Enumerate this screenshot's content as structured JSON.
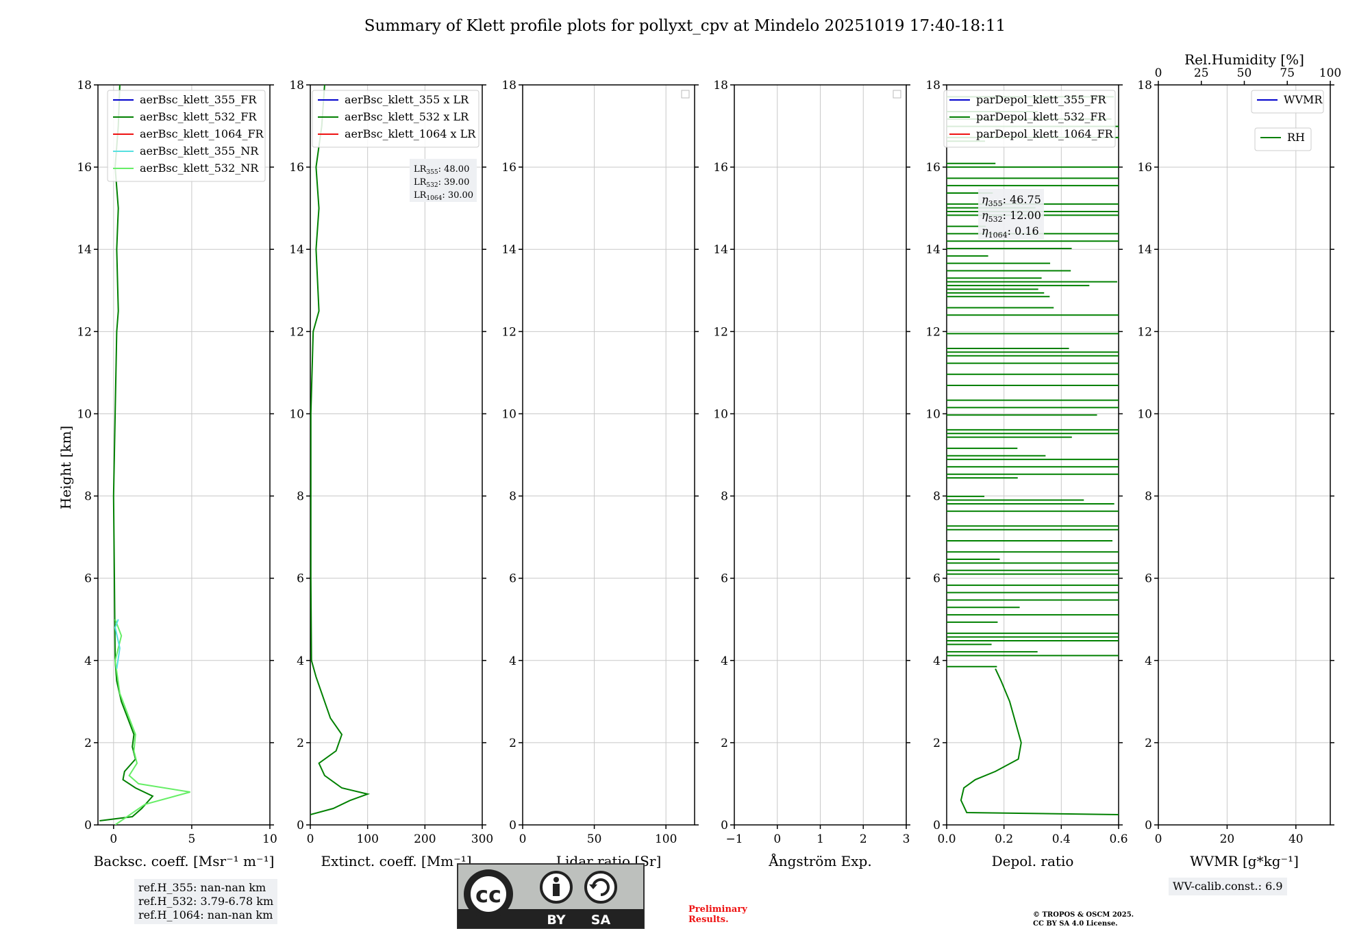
{
  "title": "Summary of Klett profile plots for pollyxt_cpv at Mindelo 20251019 17:40-18:11",
  "ylabel": "Height [km]",
  "y_ticks": [
    "0",
    "2",
    "4",
    "6",
    "8",
    "10",
    "12",
    "14",
    "16",
    "18"
  ],
  "panels": [
    {
      "xlabel": "Backsc. coeff. [Msr⁻¹ m⁻¹]",
      "xticks": [
        "0",
        "5",
        "10"
      ]
    },
    {
      "xlabel": "Extinct. coeff. [Mm⁻¹]",
      "xticks": [
        "0",
        "100",
        "200",
        "300"
      ]
    },
    {
      "xlabel": "Lidar ratio [Sr]",
      "xticks": [
        "0",
        "50",
        "100"
      ]
    },
    {
      "xlabel": "Ångström Exp.",
      "xticks": [
        "−1",
        "0",
        "1",
        "2",
        "3"
      ]
    },
    {
      "xlabel": "Depol. ratio",
      "xticks": [
        "0.0",
        "0.2",
        "0.4",
        "0.6"
      ]
    },
    {
      "xlabel": "WVMR [g*kg⁻¹]",
      "xticks": [
        "0",
        "20",
        "40"
      ],
      "top_label": "Rel.Humidity [%]",
      "top_ticks": [
        "0",
        "25",
        "50",
        "75",
        "100"
      ]
    }
  ],
  "legends": {
    "bsc": [
      "aerBsc_klett_355_FR",
      "aerBsc_klett_532_FR",
      "aerBsc_klett_1064_FR",
      "aerBsc_klett_355_NR",
      "aerBsc_klett_532_NR"
    ],
    "ext": [
      "aerBsc_klett_355 x LR",
      "aerBsc_klett_532 x LR",
      "aerBsc_klett_1064 x LR"
    ],
    "depol": [
      "parDepol_klett_355_FR",
      "parDepol_klett_532_FR",
      "parDepol_klett_1064_FR"
    ],
    "wv": [
      "WVMR",
      "RH"
    ]
  },
  "lr_annotation": {
    "lr355": "48.00",
    "lr532": "39.00",
    "lr1064": "30.00"
  },
  "eta_annotation": {
    "eta355": "46.75",
    "eta532": "12.00",
    "eta1064": "0.16"
  },
  "ref_heights": [
    "ref.H_355: nan-nan km",
    "ref.H_532: 3.79-6.78 km",
    "ref.H_1064: nan-nan km"
  ],
  "wv_calib": "WV-calib.const.: 6.9",
  "preliminary": [
    "Preliminary",
    "Results."
  ],
  "copyright": [
    "© TROPOS & OSCM 2025.",
    "CC BY SA 4.0 License."
  ],
  "license_badge": {
    "cc": "cc",
    "by": "BY",
    "sa": "SA"
  },
  "colors": {
    "c355": "#0000cc",
    "c532": "#008000",
    "c1064": "#ee1111",
    "c355nr": "#55e0e0",
    "c532nr": "#66ee66"
  },
  "chart_data": [
    {
      "type": "line",
      "panel": "backscatter",
      "xlim": [
        -1,
        10
      ],
      "ylim": [
        0,
        18
      ],
      "series": [
        {
          "name": "aerBsc_klett_532_FR",
          "points": [
            [
              -0.9,
              0.1
            ],
            [
              1.2,
              0.2
            ],
            [
              1.8,
              0.4
            ],
            [
              2.5,
              0.7
            ],
            [
              1.4,
              0.9
            ],
            [
              0.6,
              1.1
            ],
            [
              0.7,
              1.3
            ],
            [
              1.4,
              1.6
            ],
            [
              1.2,
              1.9
            ],
            [
              1.3,
              2.2
            ],
            [
              0.9,
              2.6
            ],
            [
              0.5,
              3.0
            ],
            [
              0.2,
              3.5
            ],
            [
              0.1,
              4.0
            ],
            [
              0.05,
              6.0
            ],
            [
              0.0,
              8.0
            ],
            [
              0.1,
              10.0
            ],
            [
              0.2,
              12.0
            ],
            [
              0.3,
              12.5
            ],
            [
              0.2,
              14.0
            ],
            [
              0.3,
              15.0
            ],
            [
              0.1,
              16.0
            ],
            [
              0.3,
              17.0
            ],
            [
              0.4,
              18.0
            ]
          ]
        },
        {
          "name": "aerBsc_klett_532_NR",
          "points": [
            [
              0.1,
              0.0
            ],
            [
              2.0,
              0.5
            ],
            [
              4.9,
              0.8
            ],
            [
              1.6,
              1.0
            ],
            [
              1.0,
              1.2
            ],
            [
              1.5,
              1.5
            ],
            [
              1.3,
              1.8
            ],
            [
              1.4,
              2.2
            ],
            [
              1.0,
              2.6
            ],
            [
              0.4,
              3.2
            ],
            [
              0.1,
              4.0
            ],
            [
              0.5,
              4.6
            ],
            [
              0.1,
              5.0
            ]
          ]
        },
        {
          "name": "aerBsc_klett_355_NR",
          "points": [
            [
              0.2,
              3.8
            ],
            [
              0.4,
              4.3
            ],
            [
              0.1,
              4.8
            ],
            [
              0.3,
              5.0
            ]
          ]
        }
      ]
    },
    {
      "type": "line",
      "panel": "extinction",
      "xlim": [
        0,
        300
      ],
      "ylim": [
        0,
        18
      ],
      "series": [
        {
          "name": "aerBsc_klett_532 x LR",
          "points": [
            [
              0,
              0.25
            ],
            [
              40,
              0.4
            ],
            [
              70,
              0.6
            ],
            [
              100,
              0.75
            ],
            [
              55,
              0.9
            ],
            [
              25,
              1.2
            ],
            [
              15,
              1.5
            ],
            [
              45,
              1.8
            ],
            [
              55,
              2.2
            ],
            [
              35,
              2.6
            ],
            [
              25,
              3.0
            ],
            [
              10,
              3.6
            ],
            [
              2,
              4.0
            ],
            [
              1,
              6.0
            ],
            [
              1,
              8.0
            ],
            [
              1,
              10.0
            ],
            [
              5,
              12.0
            ],
            [
              15,
              12.5
            ],
            [
              10,
              14.0
            ],
            [
              15,
              15.0
            ],
            [
              10,
              16.0
            ],
            [
              20,
              17.0
            ],
            [
              25,
              18.0
            ]
          ]
        }
      ]
    },
    {
      "type": "line",
      "panel": "lidar_ratio",
      "xlim": [
        0,
        120
      ],
      "ylim": [
        0,
        18
      ],
      "series": []
    },
    {
      "type": "line",
      "panel": "angstrom",
      "xlim": [
        -1,
        3
      ],
      "ylim": [
        0,
        18
      ],
      "series": []
    },
    {
      "type": "line",
      "panel": "depol",
      "xlim": [
        0,
        0.6
      ],
      "ylim": [
        0,
        18
      ],
      "series": [
        {
          "name": "parDepol_klett_532_FR",
          "points": [
            [
              0.6,
              0.25
            ],
            [
              0.07,
              0.3
            ],
            [
              0.05,
              0.6
            ],
            [
              0.06,
              0.9
            ],
            [
              0.1,
              1.1
            ],
            [
              0.17,
              1.3
            ],
            [
              0.25,
              1.6
            ],
            [
              0.26,
              2.0
            ],
            [
              0.24,
              2.5
            ],
            [
              0.22,
              3.0
            ],
            [
              0.19,
              3.5
            ],
            [
              0.17,
              3.8
            ]
          ]
        }
      ]
    },
    {
      "type": "line",
      "panel": "wvmr",
      "xlim": [
        0,
        50
      ],
      "ylim": [
        0,
        18
      ],
      "series": []
    }
  ]
}
